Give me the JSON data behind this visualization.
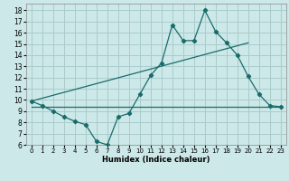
{
  "xlabel": "Humidex (Indice chaleur)",
  "xlim": [
    -0.5,
    23.5
  ],
  "ylim": [
    6,
    18.6
  ],
  "yticks": [
    6,
    7,
    8,
    9,
    10,
    11,
    12,
    13,
    14,
    15,
    16,
    17,
    18
  ],
  "xticks": [
    0,
    1,
    2,
    3,
    4,
    5,
    6,
    7,
    8,
    9,
    10,
    11,
    12,
    13,
    14,
    15,
    16,
    17,
    18,
    19,
    20,
    21,
    22,
    23
  ],
  "background_color": "#cce8e8",
  "grid_color": "#aacccc",
  "line_color": "#1a6b6b",
  "line1_x": [
    0,
    1,
    2,
    3,
    4,
    5,
    6,
    7,
    8,
    9,
    10,
    11,
    12,
    13,
    14,
    15,
    16,
    17,
    18,
    19,
    20,
    21,
    22,
    23
  ],
  "line1_y": [
    9.9,
    9.5,
    9.0,
    8.5,
    8.1,
    7.8,
    6.3,
    6.0,
    8.5,
    8.8,
    10.5,
    12.2,
    13.3,
    16.7,
    15.3,
    15.3,
    18.0,
    16.1,
    15.1,
    14.0,
    12.1,
    10.5,
    9.5,
    9.4
  ],
  "line2_x": [
    0,
    20
  ],
  "line2_y": [
    9.9,
    15.1
  ],
  "line3_x": [
    0,
    23
  ],
  "line3_y": [
    9.4,
    9.4
  ]
}
